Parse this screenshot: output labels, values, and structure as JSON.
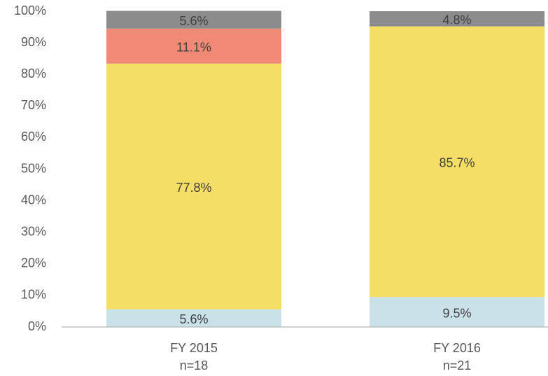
{
  "chart_data": {
    "type": "stacked_bar",
    "categories": [
      "FY 2015",
      "FY 2016"
    ],
    "sample_sizes": [
      "n=18",
      "n=21"
    ],
    "series": [
      {
        "color": "#c9e2e8",
        "values": [
          5.6,
          9.5
        ],
        "value_labels": [
          "5.6%",
          "9.5%"
        ]
      },
      {
        "color": "#f5de65",
        "values": [
          77.8,
          85.7
        ],
        "value_labels": [
          "77.8%",
          "85.7%"
        ]
      },
      {
        "color": "#f08a75",
        "values": [
          11.1,
          null
        ],
        "value_labels": [
          "11.1%",
          null
        ]
      },
      {
        "color": "#8c8c8c",
        "values": [
          5.6,
          4.8
        ],
        "value_labels": [
          "5.6%",
          "4.8%"
        ]
      }
    ],
    "ylim": [
      0,
      100
    ],
    "yticks": [
      {
        "value": 0,
        "label": "0%"
      },
      {
        "value": 10,
        "label": "10%"
      },
      {
        "value": 20,
        "label": "20%"
      },
      {
        "value": 30,
        "label": "30%"
      },
      {
        "value": 40,
        "label": "40%"
      },
      {
        "value": 50,
        "label": "50%"
      },
      {
        "value": 60,
        "label": "60%"
      },
      {
        "value": 70,
        "label": "70%"
      },
      {
        "value": 80,
        "label": "80%"
      },
      {
        "value": 90,
        "label": "90%"
      },
      {
        "value": 100,
        "label": "100%"
      }
    ],
    "grid": false
  }
}
